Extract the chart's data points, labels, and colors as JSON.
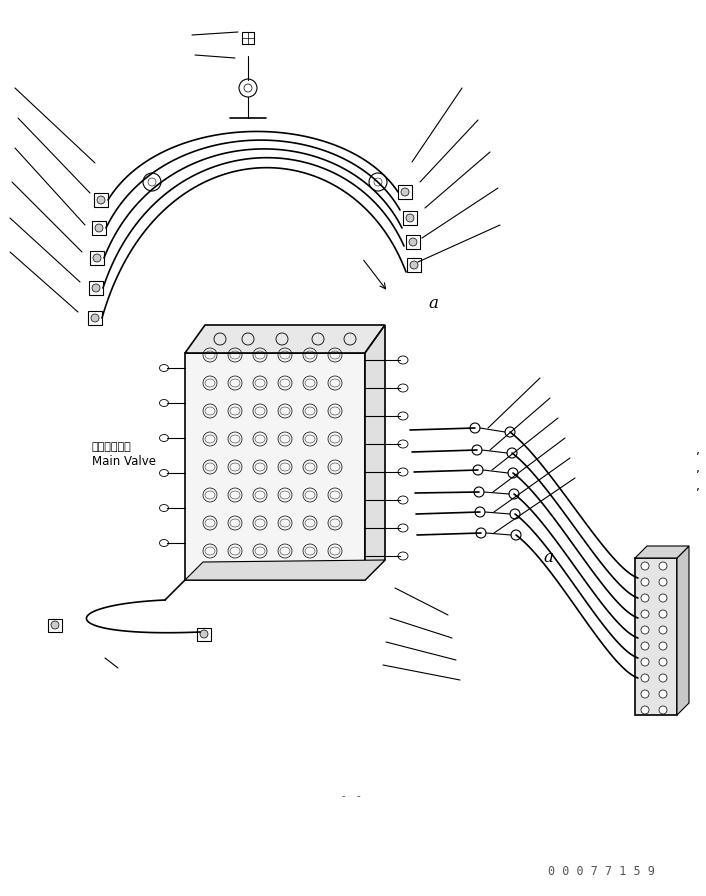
{
  "bg_color": "#ffffff",
  "line_color": "#000000",
  "line_width": 0.8,
  "part_number": "0 0 0 7 7 1 5 9",
  "label_a": "a",
  "label_main_valve_jp": "メインバルブ",
  "label_main_valve_en": "Main Valve",
  "figsize": [
    7.06,
    8.96
  ],
  "dpi": 100
}
